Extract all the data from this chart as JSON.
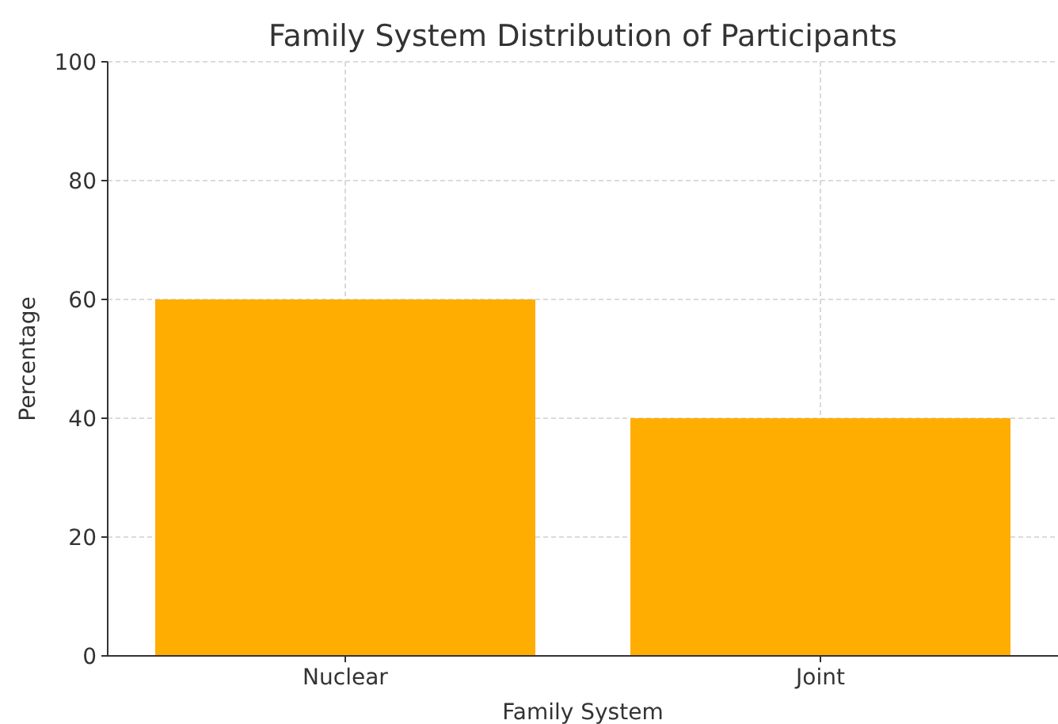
{
  "chart_data": {
    "type": "bar",
    "title": "Family System Distribution of Participants",
    "xlabel": "Family System",
    "ylabel": "Percentage",
    "categories": [
      "Nuclear",
      "Joint"
    ],
    "values": [
      60,
      40
    ],
    "color": "#ffad00",
    "ylim": [
      0,
      100
    ],
    "yticks": [
      0,
      20,
      40,
      60,
      80,
      100
    ],
    "grid": true
  }
}
